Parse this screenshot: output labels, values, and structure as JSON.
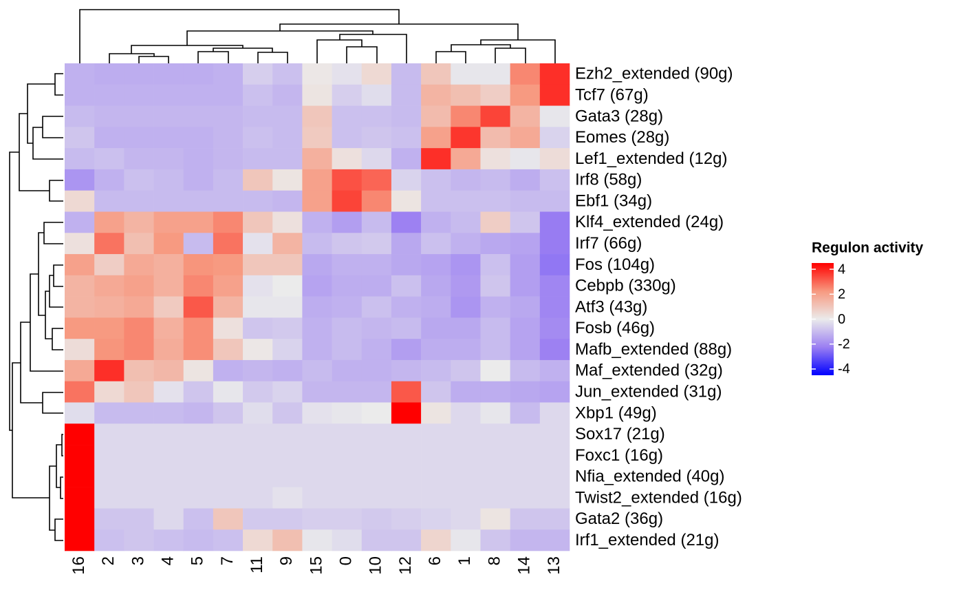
{
  "chart_data": {
    "type": "heatmap",
    "columns": [
      "16",
      "2",
      "3",
      "4",
      "5",
      "7",
      "11",
      "9",
      "15",
      "0",
      "10",
      "12",
      "6",
      "1",
      "8",
      "14",
      "13"
    ],
    "rows": [
      "Ezh2_extended (90g)",
      "Tcf7 (67g)",
      "Gata3 (28g)",
      "Eomes (28g)",
      "Lef1_extended (12g)",
      "Irf8 (58g)",
      "Ebf1 (34g)",
      "Klf4_extended (24g)",
      "Irf7 (66g)",
      "Fos (104g)",
      "Cebpb (330g)",
      "Atf3 (43g)",
      "Fosb (46g)",
      "Mafb_extended (88g)",
      "Maf_extended (32g)",
      "Jun_extended (31g)",
      "Xbp1 (49g)",
      "Sox17 (21g)",
      "Foxc1 (16g)",
      "Nfia_extended (40g)",
      "Twist2_extended (16g)",
      "Gata2 (36g)",
      "Irf1_extended (21g)"
    ],
    "values": [
      [
        -1.2,
        -1.3,
        -1.3,
        -1.3,
        -1.3,
        -1.2,
        -0.6,
        -0.9,
        0.1,
        -0.2,
        0.5,
        -1.0,
        1.0,
        -0.1,
        -0.1,
        2.5,
        3.8
      ],
      [
        -1.2,
        -1.2,
        -1.2,
        -1.2,
        -1.2,
        -1.2,
        -0.9,
        -1.1,
        0.2,
        -0.6,
        -0.3,
        -1.0,
        1.5,
        1.2,
        0.8,
        2.2,
        3.8
      ],
      [
        -1.0,
        -1.1,
        -1.1,
        -1.1,
        -1.1,
        -1.1,
        -1.0,
        -1.0,
        1.0,
        -0.9,
        -0.9,
        -1.0,
        1.3,
        2.5,
        3.5,
        1.5,
        -0.1
      ],
      [
        -0.8,
        -1.2,
        -1.2,
        -1.2,
        -1.2,
        -1.1,
        -0.9,
        -1.0,
        0.9,
        -0.9,
        -0.8,
        -0.9,
        2.0,
        3.7,
        1.3,
        1.8,
        -0.5
      ],
      [
        -1.0,
        -0.9,
        -1.1,
        -1.1,
        -1.2,
        -1.1,
        -1.0,
        -1.0,
        1.6,
        0.3,
        -0.4,
        -1.2,
        3.8,
        1.8,
        0.3,
        -0.1,
        0.4
      ],
      [
        -1.8,
        -1.2,
        -0.9,
        -1.0,
        -1.2,
        -1.0,
        1.0,
        0.2,
        2.0,
        3.3,
        3.0,
        -0.5,
        -0.9,
        -1.1,
        -1.0,
        -1.3,
        -0.9
      ],
      [
        0.5,
        -1.0,
        -1.0,
        -1.0,
        -1.0,
        -1.0,
        -1.0,
        -1.1,
        2.0,
        3.5,
        2.5,
        0.2,
        -0.9,
        -0.9,
        -0.9,
        -1.0,
        -1.0
      ],
      [
        -1.2,
        2.0,
        1.5,
        2.0,
        2.0,
        2.5,
        1.0,
        0.3,
        -1.2,
        -1.6,
        -1.0,
        -2.2,
        -1.2,
        -1.0,
        0.8,
        -0.8,
        -2.3
      ],
      [
        0.3,
        2.8,
        1.2,
        2.2,
        -1.0,
        2.8,
        -0.2,
        1.5,
        -1.0,
        -0.8,
        -0.7,
        -1.4,
        -0.9,
        -1.2,
        -1.4,
        -1.5,
        -2.3
      ],
      [
        2.0,
        0.8,
        1.8,
        1.6,
        2.3,
        2.2,
        1.0,
        1.0,
        -1.4,
        -1.2,
        -1.2,
        -1.4,
        -1.5,
        -1.8,
        -0.9,
        -1.6,
        -2.4
      ],
      [
        1.5,
        1.8,
        2.0,
        1.6,
        2.5,
        2.0,
        -0.2,
        0.0,
        -1.5,
        -1.3,
        -1.3,
        -0.9,
        -1.4,
        -1.7,
        -0.8,
        -1.6,
        -2.1
      ],
      [
        1.5,
        1.6,
        1.8,
        0.9,
        3.2,
        1.5,
        -0.1,
        -0.1,
        -1.3,
        -1.2,
        -0.9,
        -1.2,
        -1.3,
        -1.8,
        -1.2,
        -1.4,
        -2.1
      ],
      [
        2.2,
        2.2,
        2.5,
        1.6,
        2.4,
        0.3,
        -0.8,
        -0.7,
        -1.2,
        -1.0,
        -1.1,
        -1.0,
        -1.4,
        -1.4,
        -1.0,
        -1.5,
        -2.0
      ],
      [
        0.4,
        2.3,
        2.5,
        1.7,
        2.4,
        1.0,
        0.1,
        -0.5,
        -1.2,
        -1.0,
        -1.2,
        -1.6,
        -1.3,
        -1.3,
        -1.0,
        -1.5,
        -2.2
      ],
      [
        1.8,
        3.8,
        1.2,
        1.4,
        0.2,
        -1.2,
        -1.1,
        -1.2,
        -1.0,
        -1.2,
        -1.2,
        -1.1,
        -1.0,
        -0.8,
        0.0,
        -1.0,
        -1.2
      ],
      [
        2.8,
        0.5,
        1.0,
        -0.2,
        -0.8,
        -0.1,
        -0.7,
        -0.5,
        -1.1,
        -1.1,
        -1.1,
        3.2,
        -0.8,
        -1.3,
        -1.3,
        -1.4,
        -1.5
      ],
      [
        -0.3,
        -1.0,
        -1.0,
        -1.0,
        -1.1,
        -0.8,
        -0.3,
        -0.8,
        -0.2,
        -0.1,
        0.0,
        4.5,
        0.2,
        -0.4,
        -0.1,
        -1.0,
        -0.4
      ],
      [
        4.5,
        -0.4,
        -0.4,
        -0.4,
        -0.4,
        -0.4,
        -0.4,
        -0.4,
        -0.4,
        -0.4,
        -0.4,
        -0.4,
        -0.4,
        -0.4,
        -0.4,
        -0.4,
        -0.4
      ],
      [
        4.5,
        -0.4,
        -0.4,
        -0.4,
        -0.4,
        -0.4,
        -0.4,
        -0.4,
        -0.4,
        -0.4,
        -0.4,
        -0.4,
        -0.4,
        -0.4,
        -0.4,
        -0.4,
        -0.4
      ],
      [
        4.5,
        -0.4,
        -0.4,
        -0.4,
        -0.4,
        -0.4,
        -0.4,
        -0.4,
        -0.4,
        -0.4,
        -0.4,
        -0.4,
        -0.4,
        -0.4,
        -0.4,
        -0.4,
        -0.4
      ],
      [
        4.5,
        -0.4,
        -0.4,
        -0.4,
        -0.4,
        -0.4,
        -0.4,
        -0.2,
        -0.4,
        -0.4,
        -0.4,
        -0.4,
        -0.4,
        -0.4,
        -0.4,
        -0.4,
        -0.4
      ],
      [
        4.5,
        -0.8,
        -0.8,
        -0.4,
        -0.9,
        1.0,
        -0.7,
        -0.7,
        -0.6,
        -0.6,
        -0.7,
        -0.6,
        -0.5,
        -0.4,
        0.2,
        -0.8,
        -0.8
      ],
      [
        4.5,
        -0.9,
        -0.8,
        -0.9,
        -1.0,
        -0.9,
        0.5,
        1.2,
        -0.1,
        -0.3,
        -0.8,
        -0.8,
        0.6,
        -0.1,
        -0.8,
        -1.1,
        -1.1
      ]
    ],
    "legend_title": "Regulon activity",
    "zlim": [
      -4.5,
      4.5
    ],
    "zticks": [
      4,
      2,
      0,
      -2,
      -4
    ],
    "colors": [
      "#0000ff",
      "#9b7ff2",
      "#ebebeb",
      "#f7987f",
      "#ff0000"
    ]
  }
}
